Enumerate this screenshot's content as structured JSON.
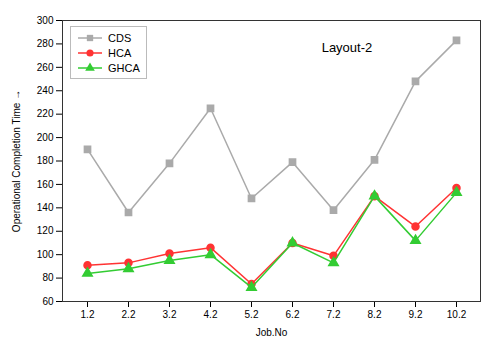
{
  "chart_data": {
    "type": "line",
    "categories": [
      "1.2",
      "2.2",
      "3.2",
      "4.2",
      "5.2",
      "6.2",
      "7.2",
      "8.2",
      "9.2",
      "10.2"
    ],
    "series": [
      {
        "name": "CDS",
        "color": "#aaaaaa",
        "marker": "square",
        "values": [
          190,
          136,
          178,
          225,
          148,
          179,
          138,
          181,
          248,
          283
        ]
      },
      {
        "name": "HCA",
        "color": "#ff3333",
        "marker": "circle",
        "values": [
          91,
          93,
          101,
          106,
          75,
          110,
          99,
          150,
          124,
          157
        ]
      },
      {
        "name": "GHCA",
        "color": "#33cc33",
        "marker": "triangle",
        "values": [
          84,
          88,
          95,
          100,
          72,
          110,
          93,
          150,
          112,
          153
        ]
      }
    ],
    "xlabel": "Job.No",
    "ylabel": "Operational Completion Time",
    "annotation": "Layout-2",
    "ylim": [
      60,
      300
    ],
    "yticks": [
      60,
      80,
      100,
      120,
      140,
      160,
      180,
      200,
      220,
      240,
      260,
      280,
      300
    ],
    "legend": "upper left"
  }
}
